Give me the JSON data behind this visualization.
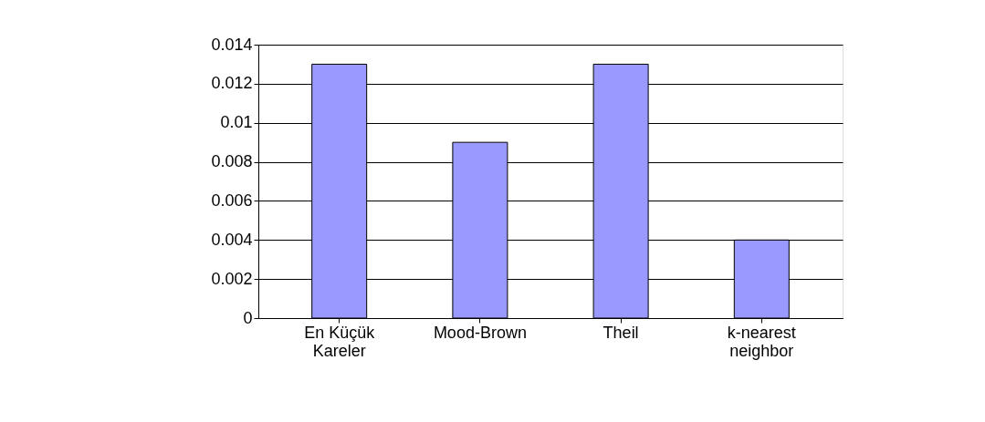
{
  "chart_data": {
    "type": "bar",
    "categories": [
      "En Küçük Kareler",
      "Mood-Brown",
      "Theil",
      "k-nearest neighbor"
    ],
    "values": [
      0.013,
      0.009,
      0.013,
      0.004
    ],
    "color": "#9999ff",
    "ylim": [
      0,
      0.014
    ],
    "yticks": [
      0,
      0.002,
      0.004,
      0.006,
      0.008,
      0.01,
      0.012,
      0.014
    ],
    "grid": "y",
    "legend": false
  }
}
